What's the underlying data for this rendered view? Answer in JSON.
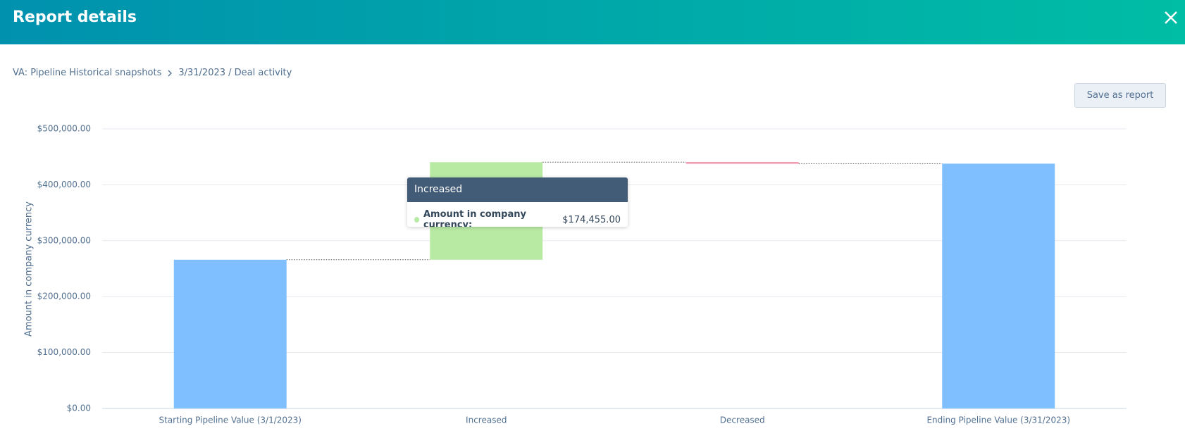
{
  "header": {
    "title": "Report details"
  },
  "breadcrumb": {
    "parent": "VA: Pipeline Historical snapshots",
    "current": "3/31/2023 / Deal activity"
  },
  "button": "Save as report",
  "chart_data": {
    "type": "waterfall",
    "y_label": "Amount in company currency",
    "categories": [
      "Starting Pipeline Value (3/1/2023)",
      "Increased",
      "Decreased",
      "Ending Pipeline Value (3/31/2023)"
    ],
    "values": [
      266000,
      174455,
      -2655,
      437800
    ],
    "total_bars": [
      true,
      false,
      false,
      true
    ],
    "colors": [
      "#80bfff",
      "#b9eaa4",
      "#f2849e",
      "#80bfff"
    ],
    "ylim": [
      0,
      500000
    ],
    "yticks": [
      {
        "value": 0,
        "label": "$0.00"
      },
      {
        "value": 100000,
        "label": "$100,000.00"
      },
      {
        "value": 200000,
        "label": "$200,000.00"
      },
      {
        "value": 300000,
        "label": "$300,000.00"
      },
      {
        "value": 400000,
        "label": "$400,000.00"
      },
      {
        "value": 500000,
        "label": "$500,000.00"
      }
    ],
    "grid": true,
    "tooltip": {
      "title": "Increased",
      "series_name": "Amount in company currency:",
      "value_label": "$174,455.00",
      "color": "#b9eaa4"
    }
  }
}
